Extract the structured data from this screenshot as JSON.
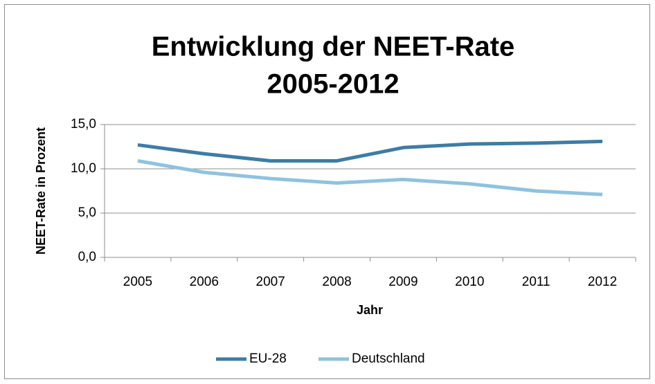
{
  "chart_data": {
    "type": "line",
    "title": [
      "Entwicklung der NEET-Rate",
      "2005-2012"
    ],
    "x_label": "Jahr",
    "y_label": "NEET-Rate in Prozent",
    "categories": [
      "2005",
      "2006",
      "2007",
      "2008",
      "2009",
      "2010",
      "2011",
      "2012"
    ],
    "series": [
      {
        "name": "EU-28",
        "color": "#3e7ca4",
        "values": [
          12.7,
          11.7,
          10.9,
          10.9,
          12.4,
          12.8,
          12.9,
          13.1
        ]
      },
      {
        "name": "Deutschland",
        "color": "#8ec2e0",
        "values": [
          10.9,
          9.6,
          8.9,
          8.4,
          8.8,
          8.3,
          7.5,
          7.1
        ]
      }
    ],
    "ylim": [
      0,
      15
    ],
    "yticks": [
      {
        "value": 0,
        "label": "0,0"
      },
      {
        "value": 5,
        "label": "5,0"
      },
      {
        "value": 10,
        "label": "10,0"
      },
      {
        "value": 15,
        "label": "15,0"
      }
    ],
    "grid": true,
    "legend": "bottom"
  }
}
